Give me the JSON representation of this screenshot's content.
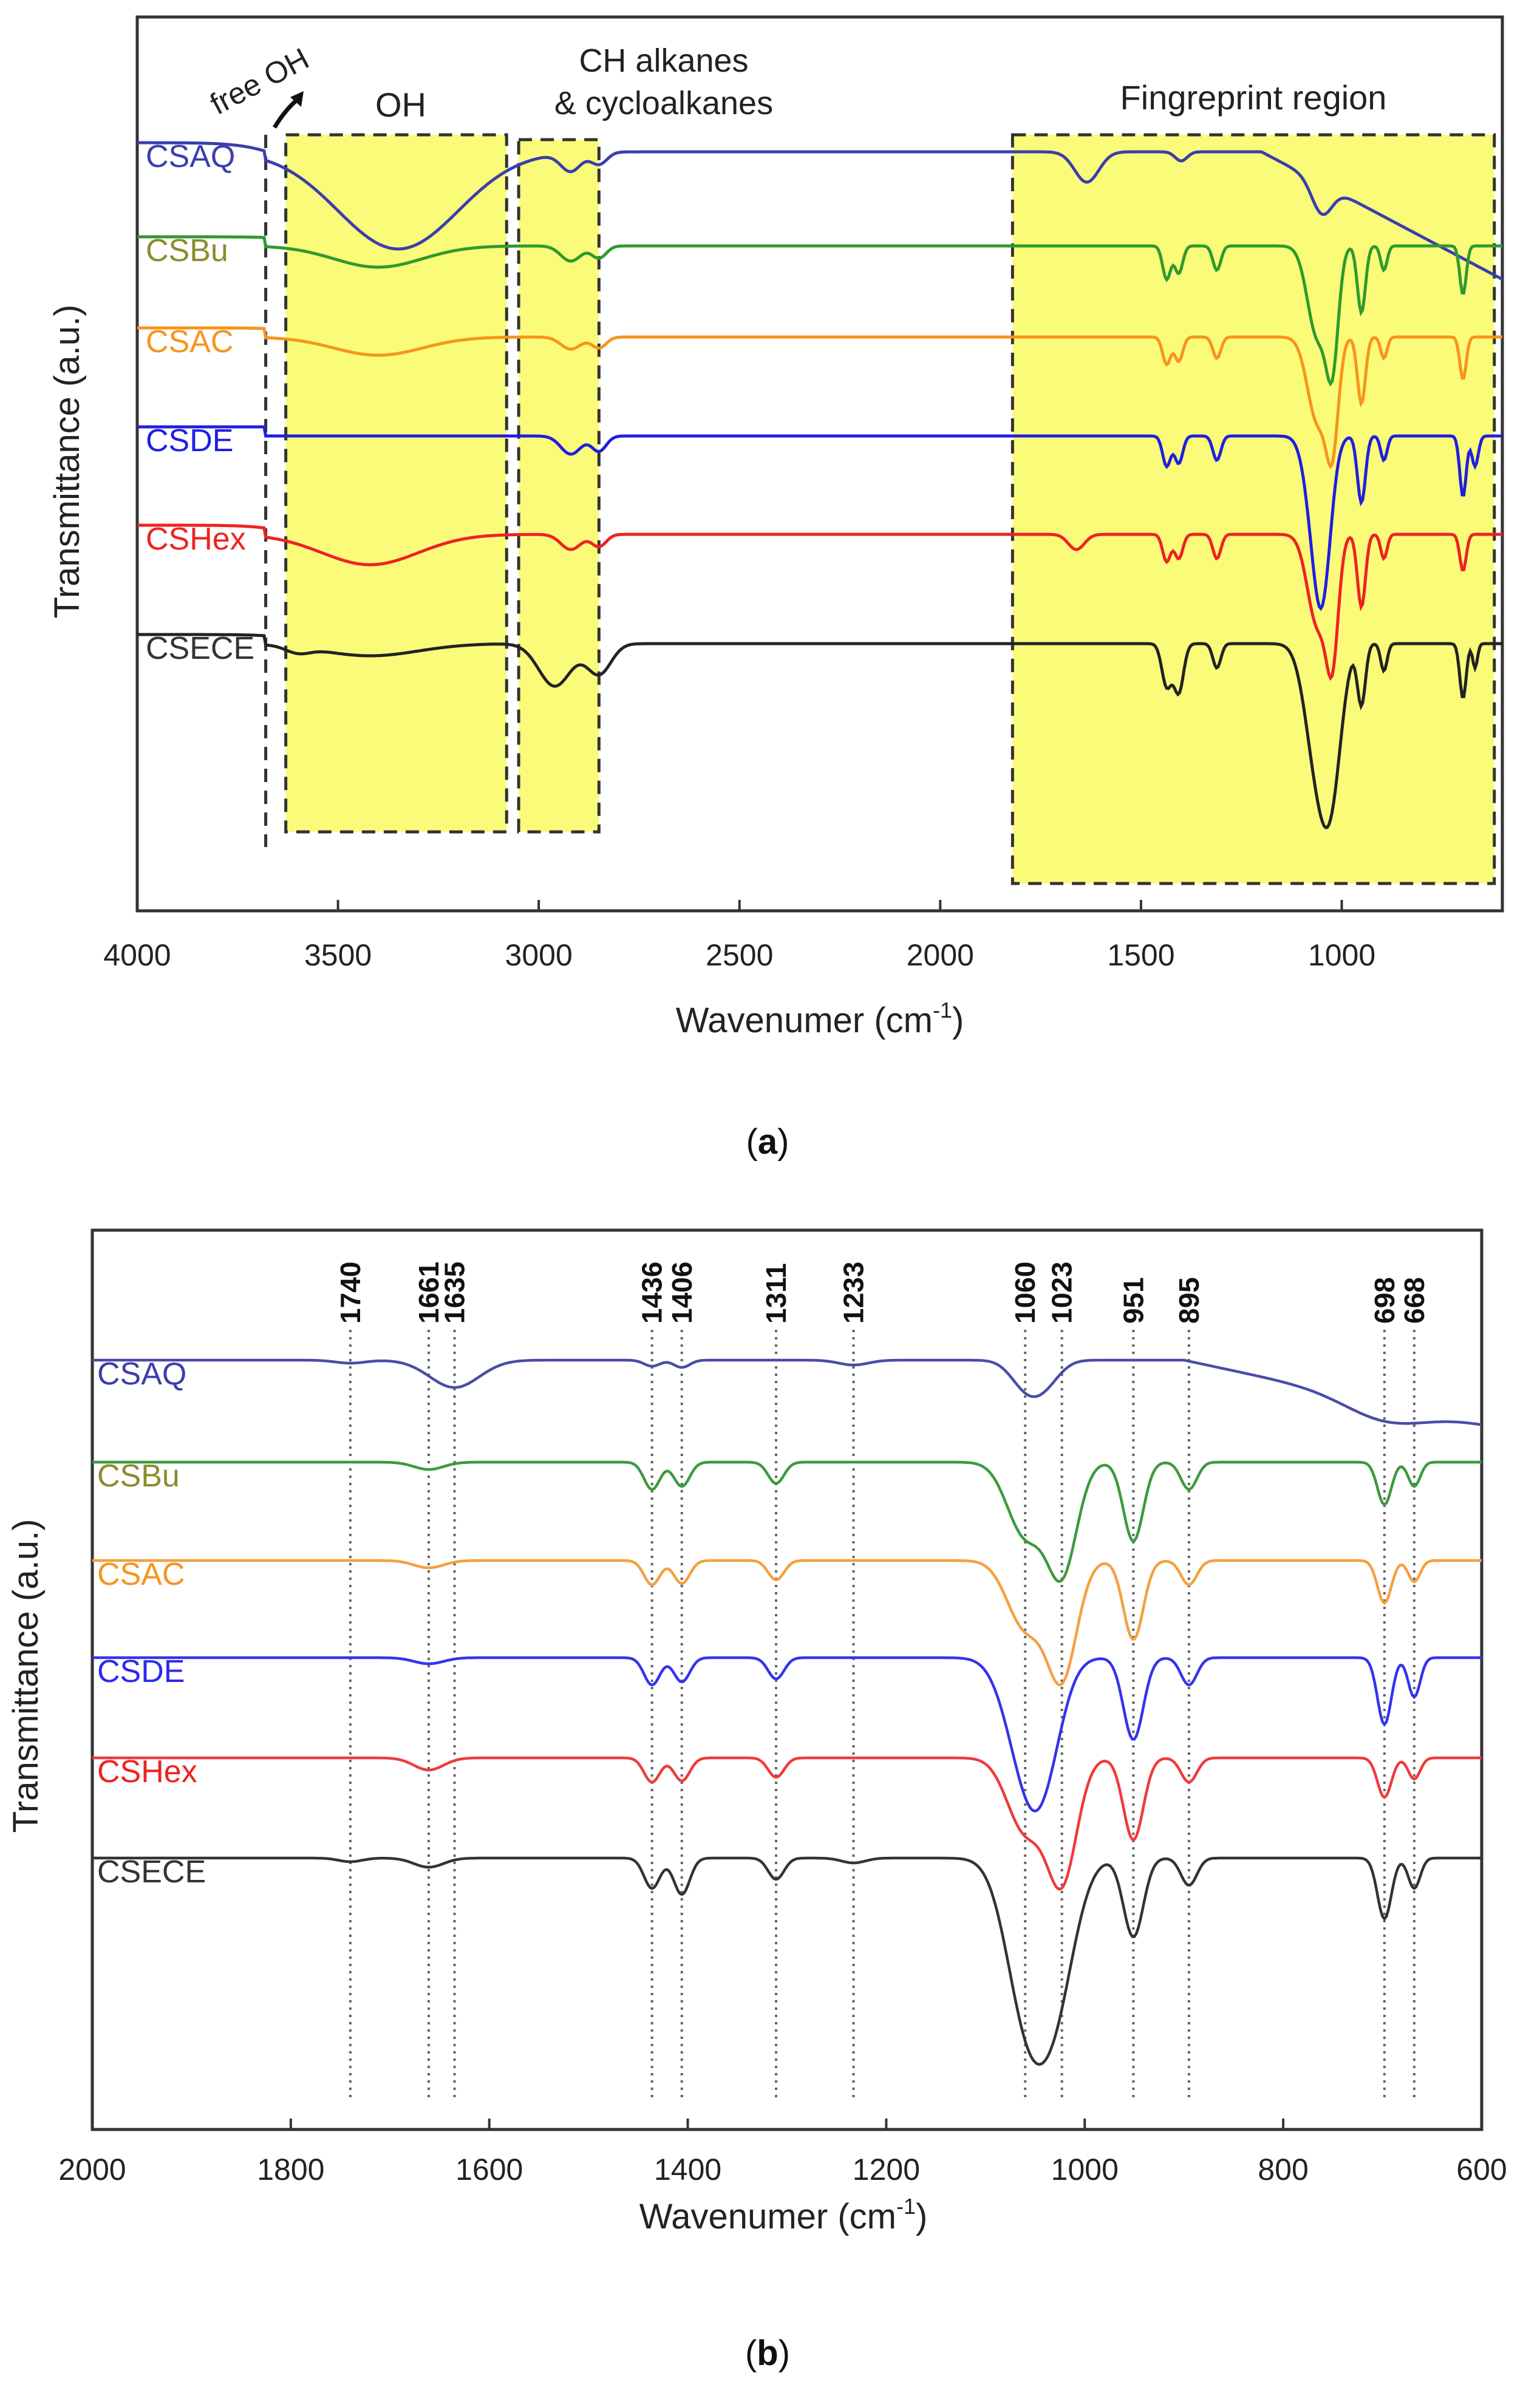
{
  "figure_labels": {
    "a": "a",
    "b": "b"
  },
  "chart_data": [
    {
      "id": "a",
      "type": "line",
      "xlabel": "Wavenumer (cm",
      "xlabel_sup": "-1",
      "xlabel_close": ")",
      "ylabel": "Transmittance (a.u.)",
      "xlim": [
        4000,
        600
      ],
      "xticks": [
        "4000",
        "3500",
        "3000",
        "2500",
        "2000",
        "1500",
        "1000"
      ],
      "annotations": {
        "free_oh": "free OH",
        "oh": "OH",
        "ch_line1": "CH alkanes",
        "ch_line2": "& cycloalkanes",
        "fingerprint": "Fingreprint region"
      },
      "regions": [
        {
          "name": "OH",
          "from": 3630,
          "to": 3080
        },
        {
          "name": "CH",
          "from": 3050,
          "to": 2850
        },
        {
          "name": "Fingerprint",
          "from": 1820,
          "to": 620
        }
      ],
      "free_oh_position": 3680,
      "series": [
        {
          "name": "CSAQ",
          "color": "#3b3eac",
          "label_color": "#3b3eac"
        },
        {
          "name": "CSBu",
          "color": "#2e9a2e",
          "label_color": "#8c8c2c"
        },
        {
          "name": "CSAC",
          "color": "#f7941d",
          "label_color": "#f7941d"
        },
        {
          "name": "CSDE",
          "color": "#1f1fe0",
          "label_color": "#1f1fe0"
        },
        {
          "name": "CSHex",
          "color": "#ee2222",
          "label_color": "#ee2222"
        },
        {
          "name": "CSECE",
          "color": "#222222",
          "label_color": "#333333"
        }
      ]
    },
    {
      "id": "b",
      "type": "line",
      "xlabel": "Wavenumer (cm",
      "xlabel_sup": "-1",
      "xlabel_close": ")",
      "ylabel": "Transmittance (a.u.)",
      "xlim": [
        2000,
        600
      ],
      "xticks": [
        "2000",
        "1800",
        "1600",
        "1400",
        "1200",
        "1000",
        "800",
        "600"
      ],
      "peak_markers": [
        "1740",
        "1661",
        "1635",
        "1436",
        "1406",
        "1311",
        "1233",
        "1060",
        "1023",
        "951",
        "895",
        "698",
        "668"
      ],
      "series": [
        {
          "name": "CSAQ",
          "color": "#4a4ca8",
          "label_color": "#3b3eac"
        },
        {
          "name": "CSBu",
          "color": "#3c9a3c",
          "label_color": "#8c8c2c"
        },
        {
          "name": "CSAC",
          "color": "#f4a040",
          "label_color": "#f7941d"
        },
        {
          "name": "CSDE",
          "color": "#3333ee",
          "label_color": "#2a2aee"
        },
        {
          "name": "CSHex",
          "color": "#ee3b3b",
          "label_color": "#ee2222"
        },
        {
          "name": "CSECE",
          "color": "#333333",
          "label_color": "#333333"
        }
      ]
    }
  ]
}
